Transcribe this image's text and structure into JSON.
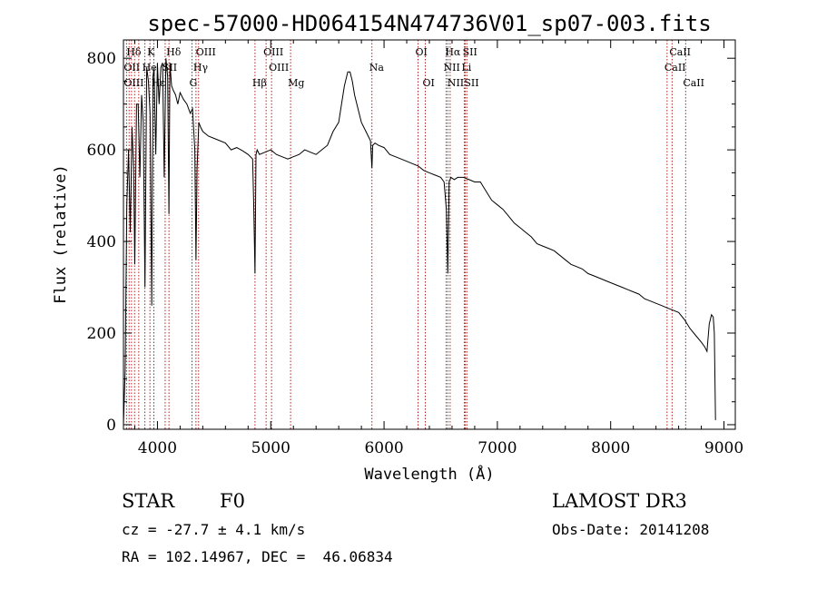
{
  "chart_data": {
    "type": "line",
    "title": "spec-57000-HD064154N474736V01_sp07-003.fits",
    "xlabel": "Wavelength (Å)",
    "ylabel": "Flux (relative)",
    "xlim": [
      3700,
      9100
    ],
    "ylim": [
      -10,
      840
    ],
    "xticks": [
      4000,
      5000,
      6000,
      7000,
      8000,
      9000
    ],
    "yticks": [
      0,
      200,
      400,
      600,
      800
    ],
    "grid": false,
    "line_color": "#000000",
    "marker_color": "#b22222",
    "series": [
      {
        "x": [
          3700,
          3715,
          3730,
          3745,
          3760,
          3775,
          3790,
          3800,
          3815,
          3830,
          3845,
          3860,
          3875,
          3890,
          3905,
          3920,
          3935,
          3950,
          3960,
          3970,
          3985,
          4000,
          4015,
          4030,
          4045,
          4060,
          4075,
          4090,
          4101,
          4110,
          4125,
          4140,
          4160,
          4180,
          4200,
          4230,
          4260,
          4290,
          4310,
          4330,
          4340,
          4350,
          4365,
          4380,
          4400,
          4450,
          4500,
          4550,
          4600,
          4650,
          4700,
          4750,
          4800,
          4840,
          4850,
          4861,
          4870,
          4880,
          4900,
          4950,
          5000,
          5050,
          5100,
          5150,
          5200,
          5250,
          5300,
          5350,
          5400,
          5450,
          5500,
          5550,
          5600,
          5650,
          5680,
          5700,
          5720,
          5740,
          5760,
          5780,
          5800,
          5820,
          5840,
          5860,
          5880,
          5893,
          5900,
          5920,
          5950,
          6000,
          6050,
          6100,
          6150,
          6200,
          6250,
          6300,
          6350,
          6400,
          6450,
          6500,
          6530,
          6550,
          6563,
          6575,
          6590,
          6620,
          6650,
          6700,
          6750,
          6800,
          6850,
          6900,
          6950,
          7000,
          7050,
          7100,
          7150,
          7200,
          7250,
          7300,
          7350,
          7400,
          7450,
          7500,
          7550,
          7600,
          7650,
          7700,
          7750,
          7800,
          7850,
          7900,
          7950,
          8000,
          8050,
          8100,
          8150,
          8200,
          8250,
          8300,
          8350,
          8400,
          8450,
          8500,
          8550,
          8600,
          8650,
          8700,
          8750,
          8800,
          8830,
          8850,
          8870,
          8890,
          8905,
          8915,
          8925
        ],
        "y": [
          0,
          120,
          480,
          600,
          420,
          650,
          560,
          350,
          700,
          700,
          540,
          720,
          660,
          300,
          780,
          750,
          680,
          260,
          760,
          780,
          590,
          790,
          700,
          780,
          790,
          540,
          800,
          760,
          460,
          790,
          740,
          730,
          720,
          700,
          725,
          710,
          700,
          680,
          690,
          600,
          360,
          560,
          660,
          650,
          640,
          630,
          625,
          620,
          615,
          600,
          605,
          598,
          590,
          580,
          480,
          330,
          590,
          600,
          590,
          595,
          600,
          590,
          585,
          580,
          585,
          590,
          600,
          595,
          590,
          600,
          610,
          640,
          660,
          740,
          770,
          770,
          750,
          720,
          700,
          680,
          660,
          650,
          640,
          630,
          620,
          560,
          610,
          615,
          610,
          605,
          590,
          585,
          580,
          575,
          570,
          565,
          555,
          550,
          545,
          540,
          530,
          470,
          330,
          530,
          540,
          535,
          540,
          540,
          535,
          530,
          530,
          510,
          490,
          480,
          470,
          455,
          440,
          430,
          420,
          410,
          395,
          390,
          385,
          380,
          370,
          360,
          350,
          345,
          340,
          330,
          325,
          320,
          315,
          310,
          305,
          300,
          295,
          290,
          285,
          275,
          270,
          265,
          260,
          255,
          250,
          245,
          230,
          210,
          195,
          180,
          170,
          160,
          220,
          240,
          235,
          200,
          10
        ]
      }
    ],
    "line_markers": [
      {
        "name": "Hδ",
        "x": 3750,
        "row": 1
      },
      {
        "name": "K",
        "x": 3933.7,
        "row": 1
      },
      {
        "name": "Hδ",
        "x": 4101.7,
        "row": 1
      },
      {
        "name": "OIII",
        "x": 4363,
        "row": 1
      },
      {
        "name": "OIII",
        "x": 4959,
        "row": 1
      },
      {
        "name": "OI",
        "x": 6300,
        "row": 1
      },
      {
        "name": "Hα",
        "x": 6562.8,
        "row": 1
      },
      {
        "name": "SII",
        "x": 6717,
        "row": 1
      },
      {
        "name": "CaII",
        "x": 8542,
        "row": 1
      },
      {
        "name": "OII",
        "x": 3727,
        "row": 2
      },
      {
        "name": "He",
        "x": 3889,
        "row": 2
      },
      {
        "name": "SII",
        "x": 4068,
        "row": 2
      },
      {
        "name": "Hγ",
        "x": 4340,
        "row": 2
      },
      {
        "name": "OIII",
        "x": 5007,
        "row": 2
      },
      {
        "name": "Na",
        "x": 5893,
        "row": 2
      },
      {
        "name": "NII",
        "x": 6548,
        "row": 2
      },
      {
        "name": "Li",
        "x": 6708,
        "row": 2
      },
      {
        "name": "CaII",
        "x": 8498,
        "row": 2
      },
      {
        "name": "OIII",
        "x": 3727,
        "row": 3
      },
      {
        "name": "Hε",
        "x": 3970,
        "row": 3
      },
      {
        "name": "G",
        "x": 4305,
        "row": 3
      },
      {
        "name": "Hβ",
        "x": 4861,
        "row": 3
      },
      {
        "name": "Mg",
        "x": 5175,
        "row": 3
      },
      {
        "name": "OI",
        "x": 6364,
        "row": 3
      },
      {
        "name": "NII",
        "x": 6583,
        "row": 3
      },
      {
        "name": "SII",
        "x": 6731,
        "row": 3
      },
      {
        "name": "CaII",
        "x": 8662,
        "row": 3
      }
    ],
    "marker_x": [
      3727,
      3750,
      3771,
      3798,
      3835,
      3889,
      3933.7,
      3968.5,
      4068,
      4101.7,
      4305,
      4340,
      4363,
      4861,
      4959,
      5007,
      5175,
      5893,
      6300,
      6364,
      6548,
      6562.8,
      6583,
      6708,
      6717,
      6731,
      8498,
      8542,
      8662
    ]
  },
  "info": {
    "object": "STAR",
    "subclass": "F0",
    "survey": "LAMOST DR3",
    "cz": "cz = -27.7 ± 4.1 km/s",
    "obs_date": "Obs-Date: 20141208",
    "coords": "RA = 102.14967, DEC =  46.06834"
  }
}
